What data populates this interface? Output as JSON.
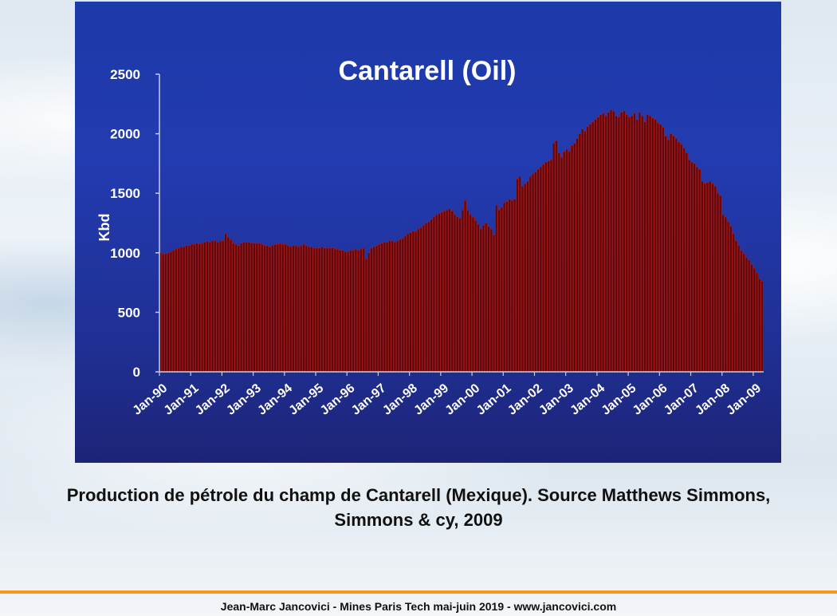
{
  "caption": {
    "line1": "Production de pétrole du champ de Cantarell (Mexique). Source Matthews Simmons,",
    "line2": "Simmons & cy, 2009"
  },
  "footer": "Jean-Marc Jancovici - Mines Paris Tech mai-juin 2019 - www.jancovici.com",
  "colors": {
    "bar_fill": "#5a0a0a",
    "bar_edge": "#b31515",
    "axis": "#c9cde6",
    "text": "#ffffff"
  },
  "chart_data": {
    "type": "bar",
    "title": "Cantarell (Oil)",
    "xlabel": "",
    "ylabel": "Kbd",
    "ylim": [
      0,
      2500
    ],
    "yticks": [
      0,
      500,
      1000,
      1500,
      2000,
      2500
    ],
    "grid": false,
    "x_tick_labels": [
      "Jan-90",
      "Jan-91",
      "Jan-92",
      "Jan-93",
      "Jan-94",
      "Jan-95",
      "Jan-96",
      "Jan-97",
      "Jan-98",
      "Jan-99",
      "Jan-00",
      "Jan-01",
      "Jan-02",
      "Jan-03",
      "Jan-04",
      "Jan-05",
      "Jan-06",
      "Jan-07",
      "Jan-08",
      "Jan-09"
    ],
    "bar_granularity": "monthly",
    "values_by_year": [
      {
        "year": "1990",
        "values": [
          1000,
          990,
          995,
          1000,
          1010,
          1020,
          1030,
          1040,
          1050,
          1050,
          1060,
          1060
        ]
      },
      {
        "year": "1991",
        "values": [
          1070,
          1070,
          1080,
          1075,
          1080,
          1090,
          1095,
          1090,
          1100,
          1100,
          1090,
          1100
        ]
      },
      {
        "year": "1992",
        "values": [
          1100,
          1160,
          1130,
          1110,
          1080,
          1070,
          1060,
          1080,
          1090,
          1090,
          1090,
          1080
        ]
      },
      {
        "year": "1993",
        "values": [
          1080,
          1080,
          1080,
          1070,
          1060,
          1060,
          1050,
          1060,
          1070,
          1070,
          1080,
          1070
        ]
      },
      {
        "year": "1994",
        "values": [
          1070,
          1060,
          1050,
          1060,
          1060,
          1050,
          1060,
          1070,
          1060,
          1050,
          1050,
          1040
        ]
      },
      {
        "year": "1995",
        "values": [
          1040,
          1040,
          1050,
          1040,
          1040,
          1040,
          1040,
          1030,
          1030,
          1020,
          1020,
          1010
        ]
      },
      {
        "year": "1996",
        "values": [
          1010,
          1020,
          1020,
          1030,
          1020,
          1030,
          1040,
          950,
          1000,
          1040,
          1050,
          1060
        ]
      },
      {
        "year": "1997",
        "values": [
          1070,
          1080,
          1090,
          1090,
          1100,
          1100,
          1090,
          1100,
          1110,
          1120,
          1140,
          1160
        ]
      },
      {
        "year": "1998",
        "values": [
          1170,
          1180,
          1180,
          1200,
          1210,
          1230,
          1250,
          1260,
          1280,
          1300,
          1320,
          1330
        ]
      },
      {
        "year": "1999",
        "values": [
          1340,
          1350,
          1360,
          1370,
          1350,
          1320,
          1300,
          1290,
          1360,
          1440,
          1360,
          1320
        ]
      },
      {
        "year": "2000",
        "values": [
          1300,
          1270,
          1240,
          1200,
          1230,
          1250,
          1220,
          1200,
          1150,
          1400,
          1360,
          1380
        ]
      },
      {
        "year": "2001",
        "values": [
          1420,
          1430,
          1450,
          1440,
          1450,
          1620,
          1640,
          1560,
          1580,
          1600,
          1640,
          1660
        ]
      },
      {
        "year": "2002",
        "values": [
          1680,
          1700,
          1720,
          1740,
          1760,
          1770,
          1780,
          1920,
          1940,
          1840,
          1800,
          1850
        ]
      },
      {
        "year": "2003",
        "values": [
          1870,
          1850,
          1900,
          1920,
          1960,
          2000,
          2040,
          2020,
          2060,
          2080,
          2100,
          2120
        ]
      },
      {
        "year": "2004",
        "values": [
          2140,
          2160,
          2170,
          2150,
          2180,
          2200,
          2190,
          2150,
          2140,
          2180,
          2190,
          2160
        ]
      },
      {
        "year": "2005",
        "values": [
          2140,
          2150,
          2170,
          2120,
          2180,
          2150,
          2100,
          2160,
          2150,
          2130,
          2120,
          2090
        ]
      },
      {
        "year": "2006",
        "values": [
          2080,
          2050,
          1980,
          1950,
          2000,
          1980,
          1960,
          1930,
          1910,
          1880,
          1840,
          1780
        ]
      },
      {
        "year": "2007",
        "values": [
          1760,
          1750,
          1720,
          1700,
          1600,
          1580,
          1590,
          1600,
          1580,
          1560,
          1500,
          1480
        ]
      },
      {
        "year": "2008",
        "values": [
          1320,
          1300,
          1260,
          1220,
          1160,
          1100,
          1060,
          1020,
          990,
          960,
          940,
          900
        ]
      },
      {
        "year": "2009",
        "values": [
          870,
          830,
          780,
          760
        ]
      }
    ]
  }
}
